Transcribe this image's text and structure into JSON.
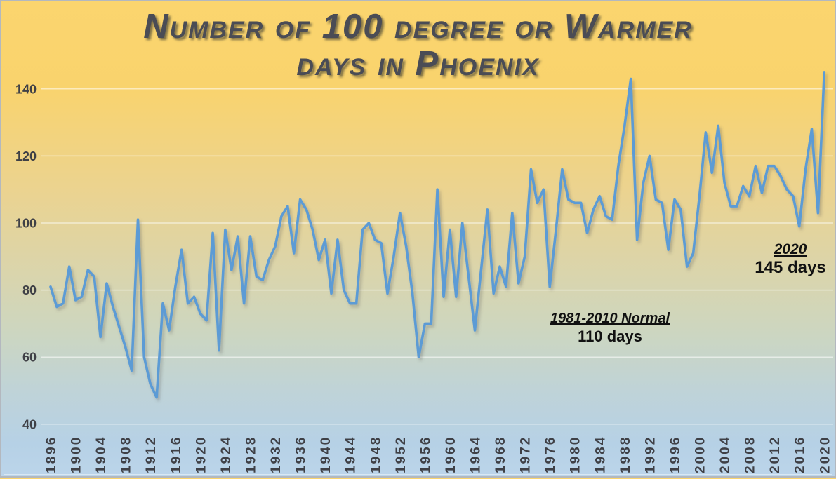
{
  "title": {
    "line1": "Number of 100 degree or Warmer",
    "line2": "days in Phoenix"
  },
  "annotations": {
    "normal": {
      "title": "1981-2010 Normal",
      "value_text": "110 days"
    },
    "record": {
      "title": "2020",
      "value_text": "145 days"
    }
  },
  "colors": {
    "series_line": "#5B9BD5",
    "normal_dashed_line": "#7F6200",
    "title_text": "#4A4C55",
    "axis_text": "#3F4046",
    "gridline": "rgba(255,255,255,0.55)",
    "background_top": "#FBD56E",
    "background_bottom": "#BCD5EA",
    "annotation_text": "#111111"
  },
  "chart_data": {
    "type": "line",
    "title": "Number of 100 degree or Warmer days in Phoenix",
    "xlabel": "",
    "ylabel": "",
    "start_year": 1896,
    "end_year": 2020,
    "x": [
      1896,
      1897,
      1898,
      1899,
      1900,
      1901,
      1902,
      1903,
      1904,
      1905,
      1906,
      1907,
      1908,
      1909,
      1910,
      1911,
      1912,
      1913,
      1914,
      1915,
      1916,
      1917,
      1918,
      1919,
      1920,
      1921,
      1922,
      1923,
      1924,
      1925,
      1926,
      1927,
      1928,
      1929,
      1930,
      1931,
      1932,
      1933,
      1934,
      1935,
      1936,
      1937,
      1938,
      1939,
      1940,
      1941,
      1942,
      1943,
      1944,
      1945,
      1946,
      1947,
      1948,
      1949,
      1950,
      1951,
      1952,
      1953,
      1954,
      1955,
      1956,
      1957,
      1958,
      1959,
      1960,
      1961,
      1962,
      1963,
      1964,
      1965,
      1966,
      1967,
      1968,
      1969,
      1970,
      1971,
      1972,
      1973,
      1974,
      1975,
      1976,
      1977,
      1978,
      1979,
      1980,
      1981,
      1982,
      1983,
      1984,
      1985,
      1986,
      1987,
      1988,
      1989,
      1990,
      1991,
      1992,
      1993,
      1994,
      1995,
      1996,
      1997,
      1998,
      1999,
      2000,
      2001,
      2002,
      2003,
      2004,
      2005,
      2006,
      2007,
      2008,
      2009,
      2010,
      2011,
      2012,
      2013,
      2014,
      2015,
      2016,
      2017,
      2018,
      2019,
      2020
    ],
    "values": [
      81,
      75,
      76,
      87,
      77,
      78,
      86,
      84,
      66,
      82,
      75,
      69,
      63,
      56,
      101,
      60,
      52,
      48,
      76,
      68,
      81,
      92,
      76,
      78,
      73,
      71,
      97,
      62,
      98,
      86,
      96,
      76,
      96,
      84,
      83,
      89,
      93,
      102,
      105,
      91,
      107,
      104,
      98,
      89,
      95,
      79,
      95,
      80,
      76,
      76,
      98,
      100,
      95,
      94,
      79,
      90,
      103,
      93,
      79,
      60,
      70,
      70,
      110,
      78,
      98,
      78,
      100,
      84,
      68,
      86,
      104,
      79,
      87,
      81,
      103,
      82,
      90,
      116,
      106,
      110,
      81,
      98,
      116,
      107,
      106,
      106,
      97,
      104,
      108,
      102,
      101,
      117,
      129,
      143,
      95,
      112,
      120,
      107,
      106,
      92,
      107,
      104,
      87,
      91,
      108,
      127,
      115,
      129,
      112,
      105,
      105,
      111,
      108,
      117,
      109,
      117,
      117,
      114,
      110,
      108,
      99,
      116,
      128,
      103,
      145
    ],
    "yticks": [
      40,
      60,
      80,
      100,
      120,
      140
    ],
    "xticks": [
      1896,
      1900,
      1904,
      1908,
      1912,
      1916,
      1920,
      1924,
      1928,
      1932,
      1936,
      1940,
      1944,
      1948,
      1952,
      1956,
      1960,
      1964,
      1968,
      1972,
      1976,
      1980,
      1984,
      1988,
      1992,
      1996,
      2000,
      2004,
      2008,
      2012,
      2016,
      2020
    ],
    "ylim": [
      40,
      150
    ],
    "grid": "horizontal",
    "legend": "none",
    "reference_line": {
      "value": 110,
      "label": "1981-2010 Normal",
      "sublabel": "110 days",
      "style": "dashed"
    },
    "callouts": [
      {
        "year": 2020,
        "value": 145,
        "text": "2020 — 145 days"
      }
    ]
  }
}
